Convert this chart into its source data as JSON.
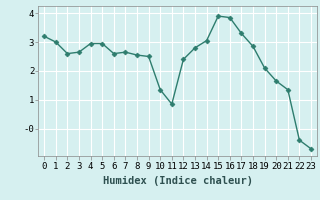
{
  "x": [
    0,
    1,
    2,
    3,
    4,
    5,
    6,
    7,
    8,
    9,
    10,
    11,
    12,
    13,
    14,
    15,
    16,
    17,
    18,
    19,
    20,
    21,
    22,
    23
  ],
  "y": [
    3.2,
    3.0,
    2.6,
    2.65,
    2.95,
    2.95,
    2.6,
    2.65,
    2.55,
    2.5,
    1.35,
    0.85,
    2.4,
    2.8,
    3.05,
    3.9,
    3.85,
    3.3,
    2.85,
    2.1,
    1.65,
    1.35,
    -0.4,
    -0.7
  ],
  "line_color": "#2e7d6e",
  "marker": "D",
  "marker_size": 2.5,
  "bg_color": "#d6f0f0",
  "grid_color": "#ffffff",
  "xlabel": "Humidex (Indice chaleur)",
  "xlim": [
    -0.5,
    23.5
  ],
  "ylim": [
    -0.95,
    4.25
  ],
  "xticks": [
    0,
    1,
    2,
    3,
    4,
    5,
    6,
    7,
    8,
    9,
    10,
    11,
    12,
    13,
    14,
    15,
    16,
    17,
    18,
    19,
    20,
    21,
    22,
    23
  ],
  "yticks": [
    0,
    1,
    2,
    3,
    4
  ],
  "ytick_labels": [
    "-0",
    "1",
    "2",
    "3",
    "4"
  ],
  "xlabel_fontsize": 7.5,
  "tick_fontsize": 6.5,
  "line_width": 1.0
}
